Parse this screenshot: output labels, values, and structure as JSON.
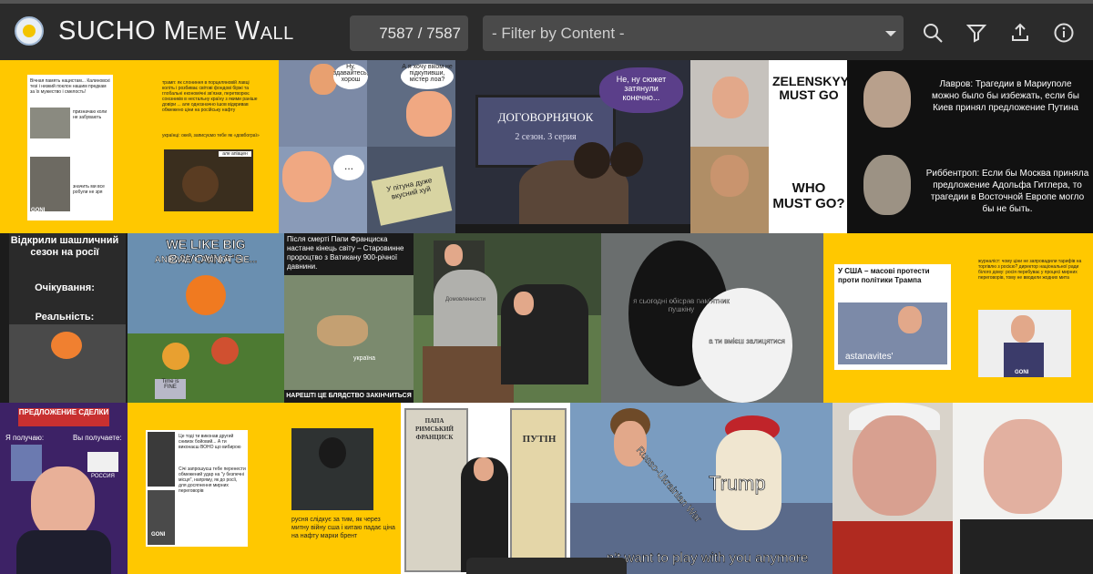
{
  "app": {
    "title": "SUCHO Meme Wall"
  },
  "toolbar": {
    "counter": "7587 / 7587",
    "filter_placeholder": "- Filter by Content -",
    "icons": [
      "search-icon",
      "filter-icon",
      "upload-icon",
      "info-icon"
    ]
  },
  "tiles": {
    "t1": {
      "left_text": "Вічная память нацистам... Калиновскі тезі і низкий поклон нашим предкам за їх мужество і смелость!",
      "mid_text": "призначаю коли не забувають",
      "bottom_text": "значить ми все робули не зря",
      "right_text": "трамп: як слониння в порцеляновій лавці коліть і розбиває світові фондові біржі та глобальні економічні зв'язки, перетворює союзників в нестальну країну з якими раніше довіри ... але однозначно ішов відкривав обмежено ціни на російську нафту",
      "right_text2": "українці: окей, записуємо тебе як «довбограї»",
      "sticker": "але апіацен",
      "brand": "GONI"
    },
    "t2": {
      "b1": "Ну, здавайтесь, хорош",
      "b2": "А я хочу віком не підкупивши, містер лоа?",
      "b3": "...",
      "sign": "У пітуна дуже вкусний хуй"
    },
    "t3": {
      "bubble": "Не, ну сюжет затянули конечно...",
      "tv_title": "ДОГОВОРНЯЧОК",
      "tv_sub": "2 сезон. 3 серия"
    },
    "t4": {
      "top": "ZELENSKYY MUST GO",
      "bottom": "WHO MUST GO?"
    },
    "t5": {
      "top": "Лавров: Трагедии в Мариуполе можно было бы избежать, если бы Киев принял предложение Путина",
      "bottom": "Риббентроп: Если бы Москва приняла предложение Адольфа Гитлера, то трагедии в Восточной Европе могло бы не быть."
    },
    "t6": {
      "title": "Відкрили шашличний сезон на росії",
      "mid": "Очікування:",
      "bottom": "Реальність:"
    },
    "t7": {
      "title1": "WE LIKE BIG BAVOVNA'S",
      "title2": "AND WE CANNOT LIE...",
      "tag": "Time is FINE"
    },
    "t8": {
      "text": "Після смерті Папи Франциска настане кінець світу – Старовинне пророцтво з Ватикану 900-річної давнини.",
      "label": "україна",
      "bottom": "НАРЕШТІ ЦЕ БЛЯДСТВО ЗАКІНЧИТЬСЯ"
    },
    "t9": {
      "grave": "Домовленности"
    },
    "t10": {
      "t1": "я сьогодні обісрав пам'ятник пушкіну",
      "t2": "а ти вмієш залицятися"
    },
    "t11": {
      "headline": "У США – масові протести проти політики Трампа",
      "label": "astanavites'",
      "right": "журналіст: чому ціни не запровадили тарифів на торгівлю з росією? директор національної ради білого дому: росія перебуває у процесі мирних переговорів, тому не вводили жодних мита",
      "brand": "GONI"
    },
    "t12": {
      "top": "ПРЕДЛОЖЕНИЕ СДЕЛКИ",
      "left": "Я получаю:",
      "right": "Вы получаете:",
      "label": "РОССИЯ"
    },
    "t13": {
      "left": "Це тоді ти виконав другий снимок бойовий... А ти виконаєш ВОНО що вибирою",
      "left2": "Січі запрошуєш тебе перенести обмежений удар на \"у безпечні місця\", напряму, як до росії, для досягнення мирних переговорів",
      "right": "русня слідкує за тим, як через митну війну сша і китаю падає ціна на нафту марки брент",
      "brand": "GONI"
    },
    "t14": {
      "left": "ПАПА РИМСЬКИЙ ФРАНЦИСК",
      "right": "ПУТІН"
    },
    "t15": {
      "label1": "Russo-Ukrainian War",
      "label2": "Trump",
      "bottom": "n't want to play with you anymore"
    },
    "t16": {}
  }
}
